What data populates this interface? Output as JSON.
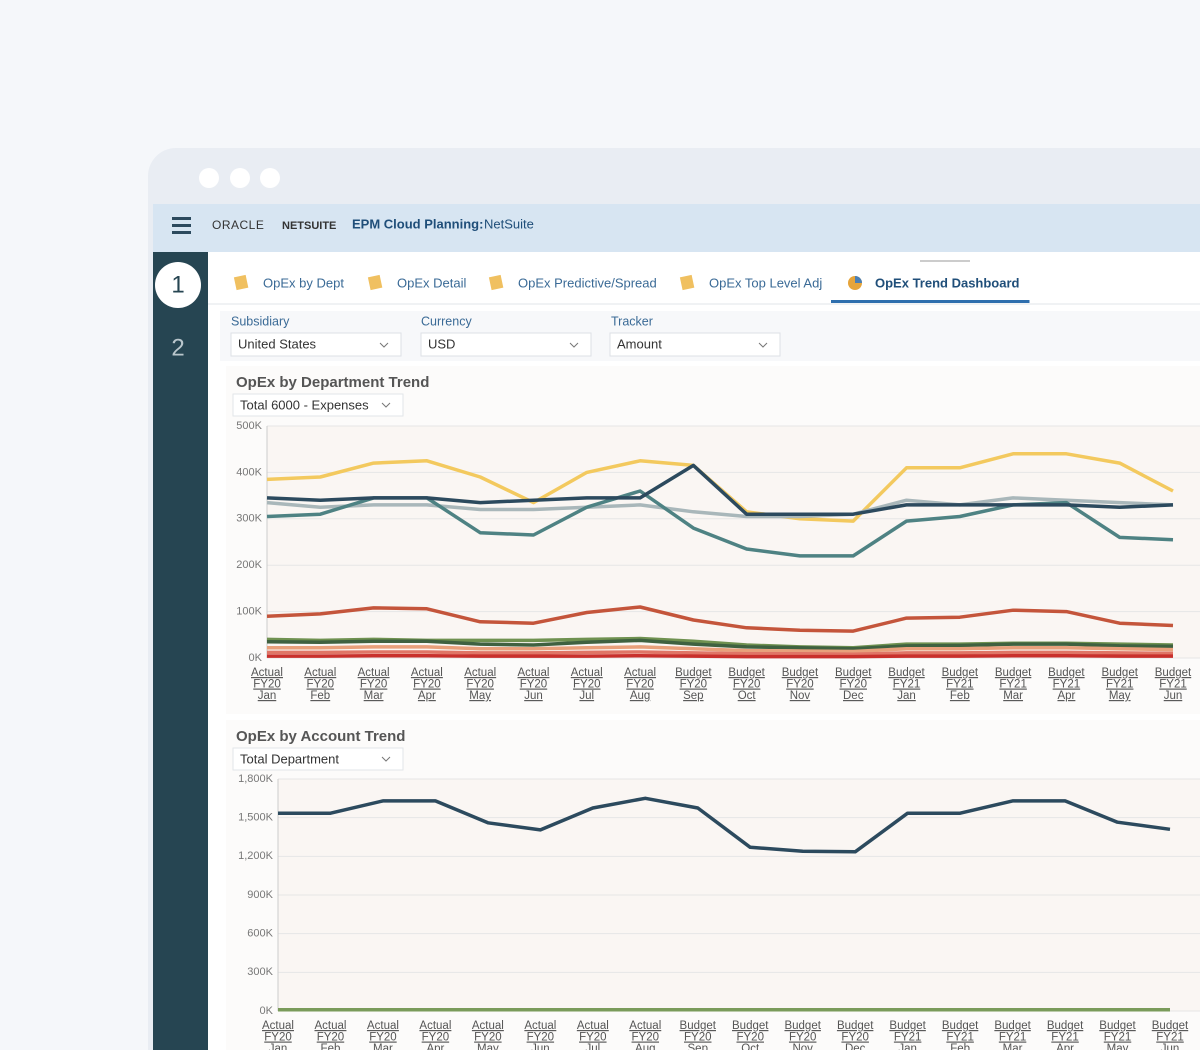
{
  "app_bar": {
    "brand": "ORACLE",
    "brand_product": "NETSUITE",
    "app_title": "EPM Cloud Planning:",
    "app_subtitle": "NetSuite"
  },
  "sidebar": {
    "steps": [
      "1",
      "2"
    ]
  },
  "tabs": [
    {
      "label": "OpEx by Dept",
      "active": false
    },
    {
      "label": "OpEx Detail",
      "active": false
    },
    {
      "label": "OpEx Predictive/Spread",
      "active": false
    },
    {
      "label": "OpEx Top Level Adj",
      "active": false
    },
    {
      "label": "OpEx Trend Dashboard",
      "active": true
    }
  ],
  "filters": [
    {
      "label": "Subsidiary",
      "value": "United States"
    },
    {
      "label": "Currency",
      "value": "USD"
    },
    {
      "label": "Tracker",
      "value": "Amount"
    }
  ],
  "chart_data": [
    {
      "type": "line",
      "title": "OpEx by Department Trend",
      "selector": "Total 6000 - Expenses",
      "categories": [
        [
          "Actual",
          "FY20",
          "Jan"
        ],
        [
          "Actual",
          "FY20",
          "Feb"
        ],
        [
          "Actual",
          "FY20",
          "Mar"
        ],
        [
          "Actual",
          "FY20",
          "Apr"
        ],
        [
          "Actual",
          "FY20",
          "May"
        ],
        [
          "Actual",
          "FY20",
          "Jun"
        ],
        [
          "Actual",
          "FY20",
          "Jul"
        ],
        [
          "Actual",
          "FY20",
          "Aug"
        ],
        [
          "Budget",
          "FY20",
          "Sep"
        ],
        [
          "Budget",
          "FY20",
          "Oct"
        ],
        [
          "Budget",
          "FY20",
          "Nov"
        ],
        [
          "Budget",
          "FY20",
          "Dec"
        ],
        [
          "Budget",
          "FY21",
          "Jan"
        ],
        [
          "Budget",
          "FY21",
          "Feb"
        ],
        [
          "Budget",
          "FY21",
          "Mar"
        ],
        [
          "Budget",
          "FY21",
          "Apr"
        ],
        [
          "Budget",
          "FY21",
          "May"
        ],
        [
          "Budget",
          "FY21",
          "Jun"
        ]
      ],
      "series": [
        {
          "color": "#f3c95e",
          "values": [
            385000,
            390000,
            420000,
            425000,
            390000,
            335000,
            400000,
            425000,
            415000,
            315000,
            300000,
            295000,
            410000,
            410000,
            440000,
            440000,
            420000,
            360000
          ]
        },
        {
          "color": "#a9b7ba",
          "values": [
            335000,
            325000,
            330000,
            330000,
            320000,
            320000,
            325000,
            330000,
            315000,
            305000,
            305000,
            310000,
            340000,
            330000,
            345000,
            340000,
            335000,
            330000
          ]
        },
        {
          "color": "#4e8283",
          "values": [
            305000,
            310000,
            345000,
            345000,
            270000,
            265000,
            325000,
            360000,
            280000,
            235000,
            220000,
            220000,
            295000,
            305000,
            330000,
            335000,
            260000,
            255000
          ]
        },
        {
          "color": "#2c4a5e",
          "values": [
            345000,
            340000,
            345000,
            345000,
            335000,
            340000,
            345000,
            345000,
            415000,
            310000,
            310000,
            310000,
            330000,
            330000,
            330000,
            330000,
            325000,
            330000
          ]
        },
        {
          "color": "#c4553b",
          "values": [
            90000,
            95000,
            108000,
            106000,
            78000,
            75000,
            98000,
            110000,
            82000,
            65000,
            60000,
            58000,
            86000,
            88000,
            103000,
            100000,
            75000,
            70000
          ]
        },
        {
          "color": "#6f9150",
          "values": [
            40000,
            38000,
            40000,
            38000,
            38000,
            38000,
            40000,
            42000,
            36000,
            28000,
            24000,
            22000,
            30000,
            30000,
            32000,
            32000,
            30000,
            28000
          ]
        },
        {
          "color": "#3f6140",
          "values": [
            35000,
            34000,
            36000,
            36000,
            30000,
            28000,
            34000,
            38000,
            30000,
            24000,
            22000,
            20000,
            26000,
            27000,
            30000,
            30000,
            26000,
            25000
          ]
        },
        {
          "color": "#e8a07b",
          "values": [
            22000,
            22000,
            24000,
            24000,
            20000,
            20000,
            22000,
            24000,
            20000,
            16000,
            15000,
            14000,
            20000,
            20000,
            22000,
            22000,
            20000,
            18000
          ]
        },
        {
          "color": "#e07566",
          "values": [
            12000,
            12000,
            13000,
            13000,
            11000,
            11000,
            12000,
            13000,
            11000,
            9000,
            9000,
            8000,
            11000,
            11000,
            12000,
            12000,
            11000,
            10000
          ]
        },
        {
          "color": "#c9302c",
          "values": [
            4000,
            4000,
            5000,
            5000,
            4000,
            4000,
            4000,
            5000,
            4000,
            3000,
            3000,
            3000,
            4000,
            4000,
            5000,
            5000,
            4000,
            4000
          ]
        }
      ],
      "ylim": [
        0,
        500000
      ],
      "yticks": [
        {
          "value": 0,
          "label": "0K"
        },
        {
          "value": 100000,
          "label": "100K"
        },
        {
          "value": 200000,
          "label": "200K"
        },
        {
          "value": 300000,
          "label": "300K"
        },
        {
          "value": 400000,
          "label": "400K"
        },
        {
          "value": 500000,
          "label": "500K"
        }
      ],
      "grid": true
    },
    {
      "type": "line",
      "title": "OpEx by Account Trend",
      "selector": "Total Department",
      "categories": [
        [
          "Actual",
          "FY20",
          "Jan"
        ],
        [
          "Actual",
          "FY20",
          "Feb"
        ],
        [
          "Actual",
          "FY20",
          "Mar"
        ],
        [
          "Actual",
          "FY20",
          "Apr"
        ],
        [
          "Actual",
          "FY20",
          "May"
        ],
        [
          "Actual",
          "FY20",
          "Jun"
        ],
        [
          "Actual",
          "FY20",
          "Jul"
        ],
        [
          "Actual",
          "FY20",
          "Aug"
        ],
        [
          "Budget",
          "FY20",
          "Sep"
        ],
        [
          "Budget",
          "FY20",
          "Oct"
        ],
        [
          "Budget",
          "FY20",
          "Nov"
        ],
        [
          "Budget",
          "FY20",
          "Dec"
        ],
        [
          "Budget",
          "FY21",
          "Jan"
        ],
        [
          "Budget",
          "FY21",
          "Feb"
        ],
        [
          "Budget",
          "FY21",
          "Mar"
        ],
        [
          "Budget",
          "FY21",
          "Apr"
        ],
        [
          "Budget",
          "FY21",
          "May"
        ],
        [
          "Budget",
          "FY21",
          "Jun"
        ]
      ],
      "series": [
        {
          "color": "#2c4a5e",
          "values": [
            1535000,
            1535000,
            1630000,
            1630000,
            1460000,
            1405000,
            1575000,
            1650000,
            1575000,
            1270000,
            1240000,
            1235000,
            1535000,
            1535000,
            1630000,
            1630000,
            1465000,
            1410000
          ]
        },
        {
          "color": "#7a9b5a",
          "values": [
            10000,
            10000,
            10000,
            10000,
            10000,
            10000,
            10000,
            10000,
            10000,
            10000,
            10000,
            10000,
            10000,
            10000,
            10000,
            10000,
            10000,
            10000
          ]
        }
      ],
      "ylim": [
        0,
        1800000
      ],
      "yticks": [
        {
          "value": 0,
          "label": "0K"
        },
        {
          "value": 300000,
          "label": "300K"
        },
        {
          "value": 600000,
          "label": "600K"
        },
        {
          "value": 900000,
          "label": "900K"
        },
        {
          "value": 1200000,
          "label": "1,200K"
        },
        {
          "value": 1500000,
          "label": "1,500K"
        },
        {
          "value": 1800000,
          "label": "1,800K"
        }
      ],
      "grid": true
    }
  ]
}
